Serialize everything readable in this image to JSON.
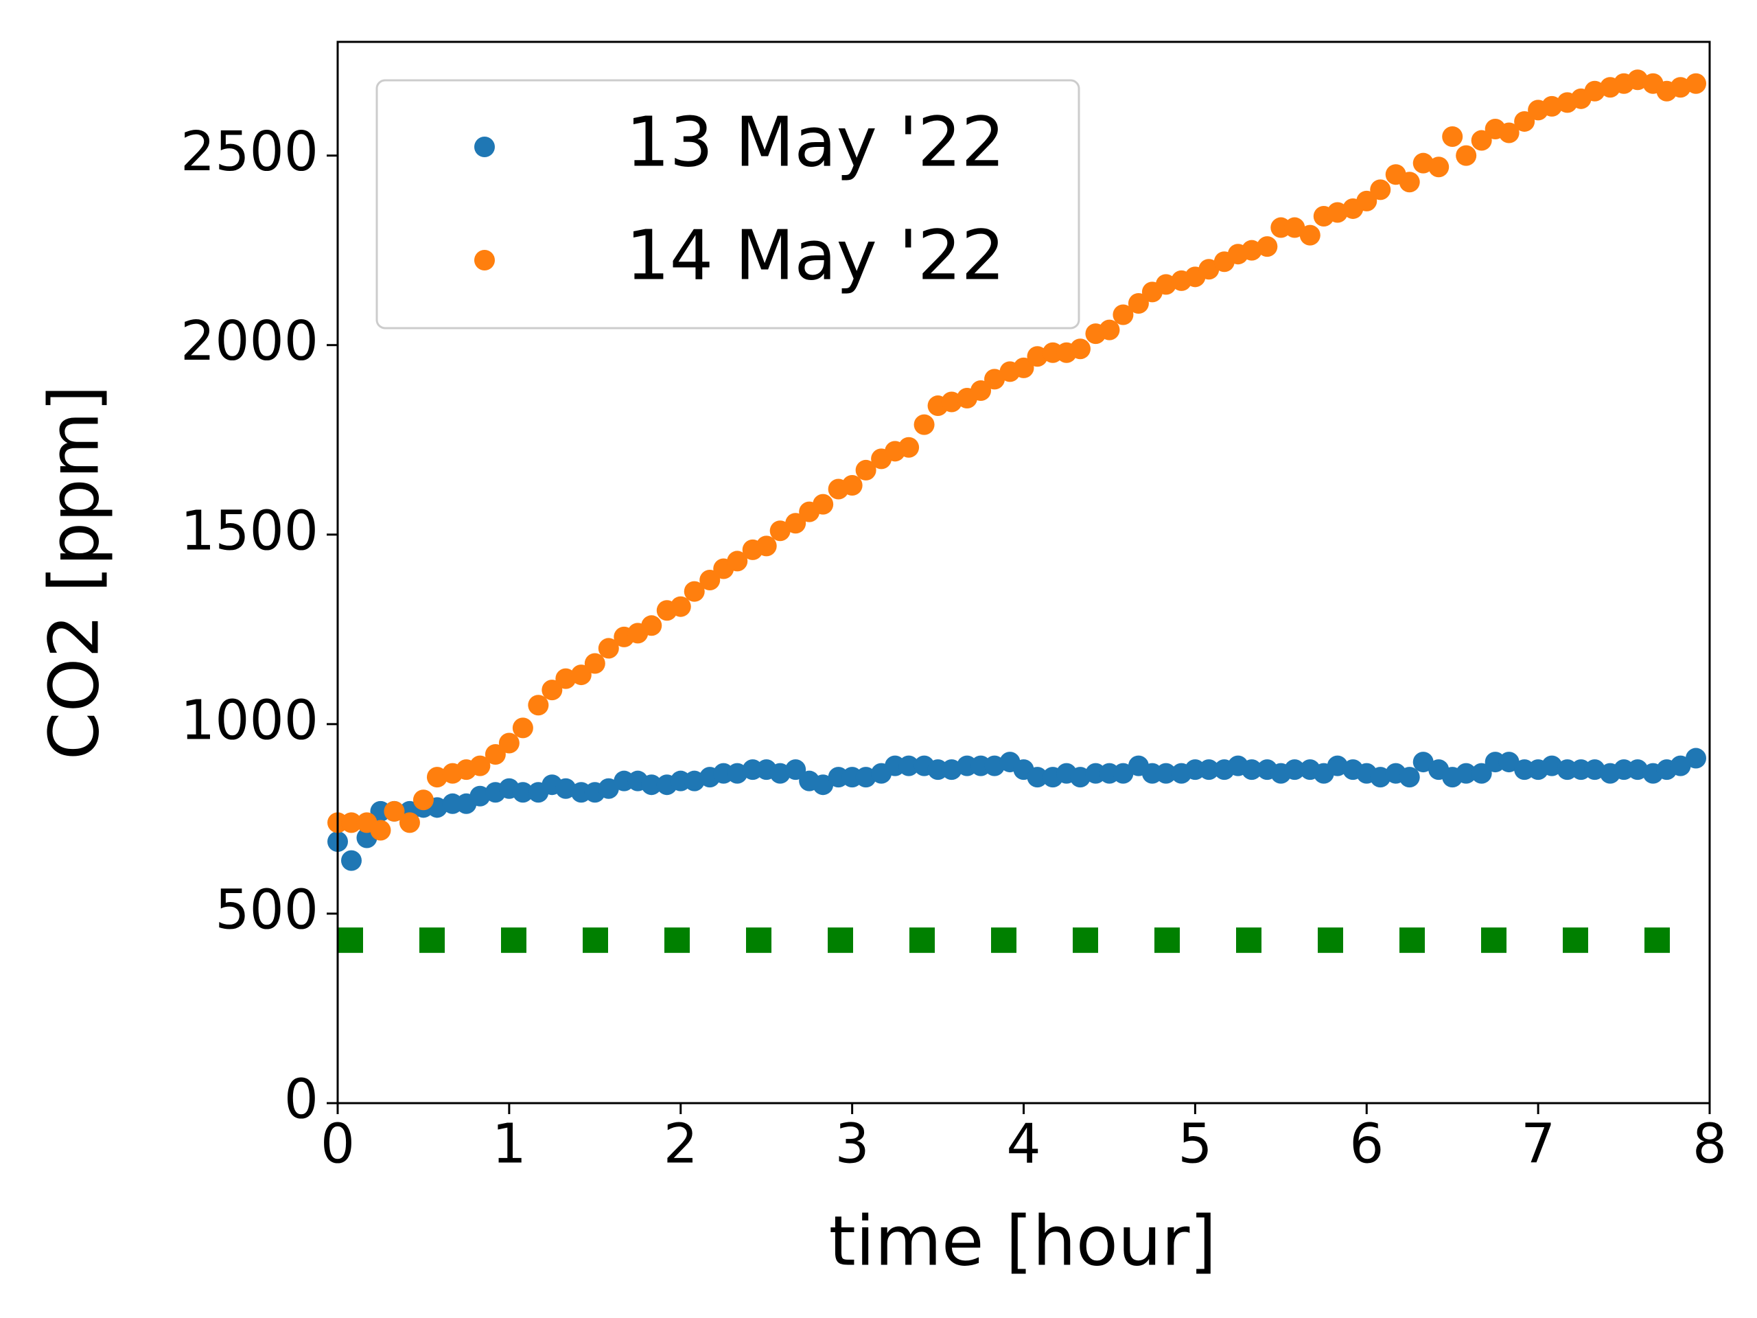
{
  "chart_data": {
    "type": "scatter",
    "x_label": "time [hour]",
    "y_label": "CO2 [ppm]",
    "xlim": [
      0,
      8
    ],
    "xticks": [
      0,
      1,
      2,
      3,
      4,
      5,
      6,
      7,
      8
    ],
    "ylim": [
      0,
      2800
    ],
    "yticks": [
      0,
      500,
      1000,
      1500,
      2000,
      2500
    ],
    "legend": "upper left",
    "x": [
      0,
      0.08,
      0.17,
      0.25,
      0.33,
      0.42,
      0.5,
      0.58,
      0.67,
      0.75,
      0.83,
      0.92,
      1,
      1.08,
      1.17,
      1.25,
      1.33,
      1.42,
      1.5,
      1.58,
      1.67,
      1.75,
      1.83,
      1.92,
      2,
      2.08,
      2.17,
      2.25,
      2.33,
      2.42,
      2.5,
      2.58,
      2.67,
      2.75,
      2.83,
      2.92,
      3,
      3.08,
      3.17,
      3.25,
      3.33,
      3.42,
      3.5,
      3.58,
      3.67,
      3.75,
      3.83,
      3.92,
      4,
      4.08,
      4.17,
      4.25,
      4.33,
      4.42,
      4.5,
      4.58,
      4.67,
      4.75,
      4.83,
      4.92,
      5,
      5.08,
      5.17,
      5.25,
      5.33,
      5.42,
      5.5,
      5.58,
      5.67,
      5.75,
      5.83,
      5.92,
      6,
      6.08,
      6.17,
      6.25,
      6.33,
      6.42,
      6.5,
      6.58,
      6.67,
      6.75,
      6.83,
      6.92,
      7,
      7.08,
      7.17,
      7.25,
      7.33,
      7.42,
      7.5,
      7.58,
      7.67,
      7.75,
      7.83,
      7.92
    ],
    "series": [
      {
        "name": "13 May '22",
        "color": "#1f77b4",
        "values": [
          690,
          640,
          700,
          770,
          770,
          770,
          780,
          780,
          790,
          790,
          810,
          820,
          830,
          820,
          820,
          840,
          830,
          820,
          820,
          830,
          850,
          850,
          840,
          840,
          850,
          850,
          860,
          870,
          870,
          880,
          880,
          870,
          880,
          850,
          840,
          860,
          860,
          860,
          870,
          890,
          890,
          890,
          880,
          880,
          890,
          890,
          890,
          900,
          880,
          860,
          860,
          870,
          860,
          870,
          870,
          870,
          890,
          870,
          870,
          870,
          880,
          880,
          880,
          890,
          880,
          880,
          870,
          880,
          880,
          870,
          890,
          880,
          870,
          860,
          870,
          860,
          900,
          880,
          860,
          870,
          870,
          900,
          900,
          880,
          880,
          890,
          880,
          880,
          880,
          870,
          880,
          880,
          870,
          880,
          890,
          910
        ]
      },
      {
        "name": "14 May '22",
        "color": "#ff7f0e",
        "values": [
          740,
          740,
          740,
          720,
          770,
          740,
          800,
          860,
          870,
          880,
          890,
          920,
          950,
          990,
          1050,
          1090,
          1120,
          1130,
          1160,
          1200,
          1230,
          1240,
          1260,
          1300,
          1310,
          1350,
          1380,
          1410,
          1430,
          1460,
          1470,
          1510,
          1530,
          1560,
          1580,
          1620,
          1630,
          1670,
          1700,
          1720,
          1730,
          1790,
          1840,
          1850,
          1860,
          1880,
          1910,
          1930,
          1940,
          1970,
          1980,
          1980,
          1990,
          2030,
          2040,
          2080,
          2110,
          2140,
          2160,
          2170,
          2180,
          2200,
          2220,
          2240,
          2250,
          2260,
          2310,
          2310,
          2290,
          2340,
          2350,
          2360,
          2380,
          2410,
          2450,
          2430,
          2480,
          2470,
          2550,
          2500,
          2540,
          2570,
          2560,
          2590,
          2620,
          2630,
          2640,
          2650,
          2670,
          2680,
          2690,
          2700,
          2690,
          2670,
          2680,
          2690
        ]
      }
    ],
    "reference_line": {
      "x": [
        0,
        7.78
      ],
      "values": [
        430,
        430
      ],
      "color": "#008000",
      "style": "dotted"
    }
  }
}
